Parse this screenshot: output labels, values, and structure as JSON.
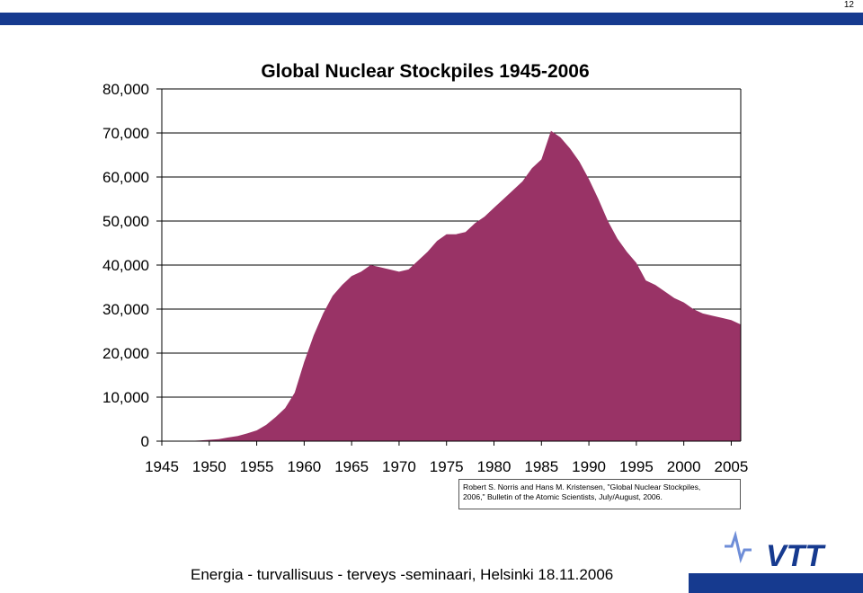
{
  "page": {
    "number": "12"
  },
  "citation": {
    "lines": [
      "Robert S. Norris and Hans M. Kristensen, \"Global Nuclear Stockpiles,",
      "2006,\" Bulletin of the Atomic Scientists, July/August, 2006."
    ]
  },
  "footer": {
    "text": "Energia - turvallisuus - terveys -seminaari, Helsinki 18.11.2006"
  },
  "logo": {
    "text": "VTT",
    "color": "#163a8f"
  },
  "colors": {
    "area": "#993366",
    "top_bar": "#163a8f"
  },
  "chart_data": {
    "type": "area",
    "title": "Global Nuclear Stockpiles 1945-2006",
    "xlabel": "",
    "ylabel": "",
    "xlim": [
      1945,
      2006
    ],
    "ylim": [
      0,
      80000
    ],
    "x_ticks": [
      "1945",
      "1950",
      "1955",
      "1960",
      "1965",
      "1970",
      "1975",
      "1980",
      "1985",
      "1990",
      "1995",
      "2000",
      "2005"
    ],
    "y_ticks": [
      "0",
      "10,000",
      "20,000",
      "30,000",
      "40,000",
      "50,000",
      "60,000",
      "70,000",
      "80,000"
    ],
    "grid": true,
    "x": [
      1945,
      1946,
      1947,
      1948,
      1949,
      1950,
      1951,
      1952,
      1953,
      1954,
      1955,
      1956,
      1957,
      1958,
      1959,
      1960,
      1961,
      1962,
      1963,
      1964,
      1965,
      1966,
      1967,
      1968,
      1969,
      1970,
      1971,
      1972,
      1973,
      1974,
      1975,
      1976,
      1977,
      1978,
      1979,
      1980,
      1981,
      1982,
      1983,
      1984,
      1985,
      1986,
      1987,
      1988,
      1989,
      1990,
      1991,
      1992,
      1993,
      1994,
      1995,
      1996,
      1997,
      1998,
      1999,
      2000,
      2001,
      2002,
      2003,
      2004,
      2005,
      2006
    ],
    "series": [
      {
        "values": [
          2,
          9,
          13,
          50,
          170,
          300,
          440,
          840,
          1170,
          1750,
          2450,
          3700,
          5500,
          7500,
          11000,
          18000,
          24000,
          29000,
          33000,
          35500,
          37500,
          38500,
          40000,
          39500,
          39000,
          38500,
          39000,
          41000,
          43000,
          45500,
          47000,
          47000,
          47500,
          49500,
          51000,
          53000,
          55000,
          57000,
          59000,
          62000,
          64000,
          70500,
          69000,
          66500,
          63500,
          59500,
          55000,
          50000,
          46000,
          43000,
          40500,
          36500,
          35500,
          34000,
          32500,
          31500,
          30000,
          29000,
          28500,
          28000,
          27500,
          26500
        ]
      }
    ]
  }
}
